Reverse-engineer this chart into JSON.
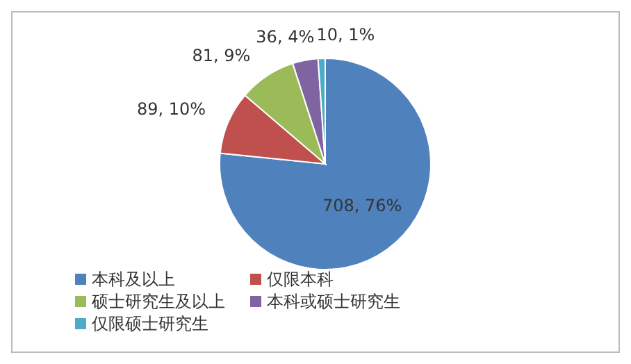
{
  "chart_data": {
    "type": "pie",
    "categories": [
      "本科及以上",
      "仅限本科",
      "硕士研究生及以上",
      "本科或硕士研究生",
      "仅限硕士研究生"
    ],
    "values": [
      708,
      89,
      81,
      36,
      10
    ],
    "colors": [
      "#4f81bd",
      "#c0504d",
      "#9bbb59",
      "#8064a2",
      "#4bacc6"
    ],
    "value_labels": [
      "708, 76%",
      "89, 10%",
      "81, 9%",
      "36, 4%",
      "10, 1%"
    ],
    "legend": "bottom"
  }
}
